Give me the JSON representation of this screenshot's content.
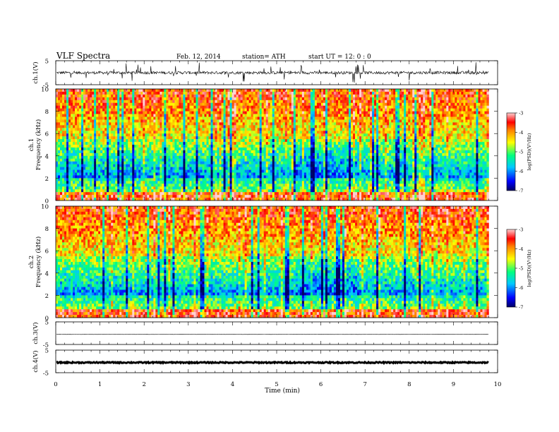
{
  "header": {
    "title": "VLF  Spectra",
    "date": "Feb. 12, 2014",
    "station": "station= ATH",
    "start": "start  UT  =    12: 0  : 0"
  },
  "chart_data": [
    {
      "type": "line",
      "panel": "ch1-waveform",
      "ylabel": "ch.1(V)",
      "yticks": [
        "5",
        "-5"
      ],
      "ylim": [
        -5,
        5
      ],
      "xlim": [
        0,
        10
      ],
      "data_end_min": 9.8,
      "approx_baseline_V": 0,
      "description_color": "#000000"
    },
    {
      "type": "heatmap",
      "panel": "ch1-spectrogram",
      "ylabel": "ch.1\nFrequency  (kHz)",
      "ylabel_lines": [
        "ch.1",
        "Frequency  (kHz)"
      ],
      "yticks": [
        "10",
        "8",
        "6",
        "4",
        "2",
        "0"
      ],
      "ylim": [
        0,
        10
      ],
      "xlim": [
        0,
        10
      ],
      "data_end_min": 9.8,
      "colorbar": {
        "label": "log(PSD)(V²/Hz)",
        "ticks": [
          "-3",
          "-4",
          "-5",
          "-6",
          "-7"
        ],
        "range": [
          -7,
          -3
        ],
        "colors": [
          "#000064",
          "#0000ff",
          "#00c8ff",
          "#00ff80",
          "#ffff00",
          "#ff8000",
          "#ff0000",
          "#ffc8c8"
        ]
      }
    },
    {
      "type": "heatmap",
      "panel": "ch2-spectrogram",
      "ylabel": "ch.2\nFrequency  (kHz)",
      "ylabel_lines": [
        "ch.2",
        "Frequency  (kHz)"
      ],
      "yticks": [
        "10",
        "8",
        "6",
        "4",
        "2",
        "0"
      ],
      "ylim": [
        0,
        10
      ],
      "xlim": [
        0,
        10
      ],
      "data_end_min": 9.8,
      "colorbar": {
        "label": "log(PSD)(V²/Hz)",
        "ticks": [
          "-3",
          "-4",
          "-5",
          "-6",
          "-7"
        ],
        "range": [
          -7,
          -3
        ]
      }
    },
    {
      "type": "line",
      "panel": "ch3-waveform",
      "ylabel": "ch.3(V)",
      "yticks": [
        "5",
        "-5"
      ],
      "ylim": [
        -5,
        5
      ],
      "xlim": [
        0,
        10
      ],
      "data_end_min": 9.8,
      "approx_level_V": -0.5
    },
    {
      "type": "line",
      "panel": "ch4-waveform",
      "ylabel": "ch.4(V)",
      "yticks": [
        "5",
        "-5"
      ],
      "ylim": [
        -5,
        5
      ],
      "xlim": [
        0,
        10
      ],
      "data_end_min": 9.8,
      "approx_level_V": -0.5
    }
  ],
  "xaxis": {
    "label": "Time  (min)",
    "ticks": [
      "0",
      "1",
      "2",
      "3",
      "4",
      "5",
      "6",
      "7",
      "8",
      "9",
      "10"
    ]
  }
}
